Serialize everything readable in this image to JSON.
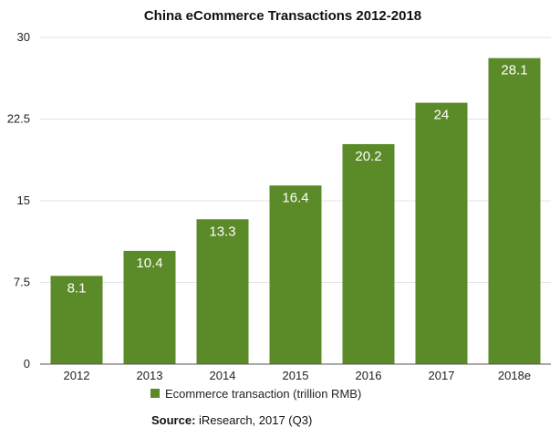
{
  "chart_data": {
    "type": "bar",
    "title": "China eCommerce Transactions 2012-2018",
    "categories": [
      "2012",
      "2013",
      "2014",
      "2015",
      "2016",
      "2017",
      "2018e"
    ],
    "series": [
      {
        "name": "Ecommerce transaction (trillion RMB)",
        "values": [
          8.1,
          10.4,
          13.3,
          16.4,
          20.2,
          24,
          28.1
        ],
        "color": "#5b8a29"
      }
    ],
    "data_labels": [
      "8.1",
      "10.4",
      "13.3",
      "16.4",
      "20.2",
      "24",
      "28.1"
    ],
    "ylim": [
      0,
      30
    ],
    "yticks": [
      "0",
      "7.5",
      "15",
      "22.5",
      "30"
    ],
    "ytick_values": [
      0,
      7.5,
      15,
      22.5,
      30
    ],
    "grid": true,
    "legend_position": "bottom"
  },
  "source": {
    "label": "Source:",
    "text": " iResearch, 2017 (Q3)"
  },
  "colors": {
    "bar": "#5b8a29",
    "grid": "#e3e3e3",
    "axis": "#555555"
  }
}
